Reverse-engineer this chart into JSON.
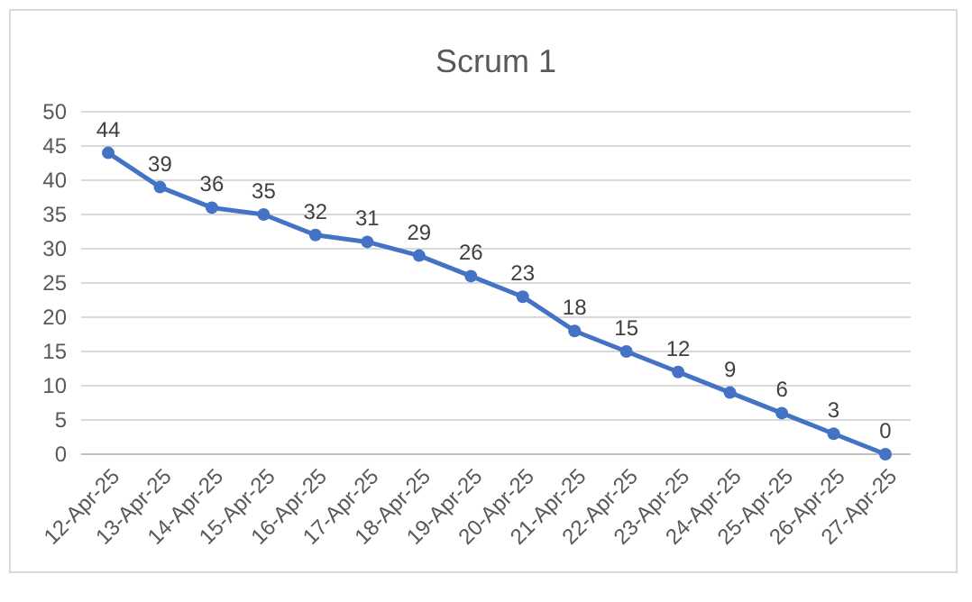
{
  "chart_data": {
    "type": "line",
    "title": "Scrum 1",
    "categories": [
      "12-Apr-25",
      "13-Apr-25",
      "14-Apr-25",
      "15-Apr-25",
      "16-Apr-25",
      "17-Apr-25",
      "18-Apr-25",
      "19-Apr-25",
      "20-Apr-25",
      "21-Apr-25",
      "22-Apr-25",
      "23-Apr-25",
      "24-Apr-25",
      "25-Apr-25",
      "26-Apr-25",
      "27-Apr-25"
    ],
    "series": [
      {
        "color": "#4472c4",
        "values": [
          44,
          39,
          36,
          35,
          32,
          31,
          29,
          26,
          23,
          18,
          15,
          12,
          9,
          6,
          3,
          0
        ]
      }
    ],
    "ylim": [
      0,
      50
    ],
    "yticks": [
      0,
      5,
      10,
      15,
      20,
      25,
      30,
      35,
      40,
      45,
      50
    ],
    "grid": "y",
    "marker": "circle",
    "line_style": "solid",
    "data_labels": true
  }
}
